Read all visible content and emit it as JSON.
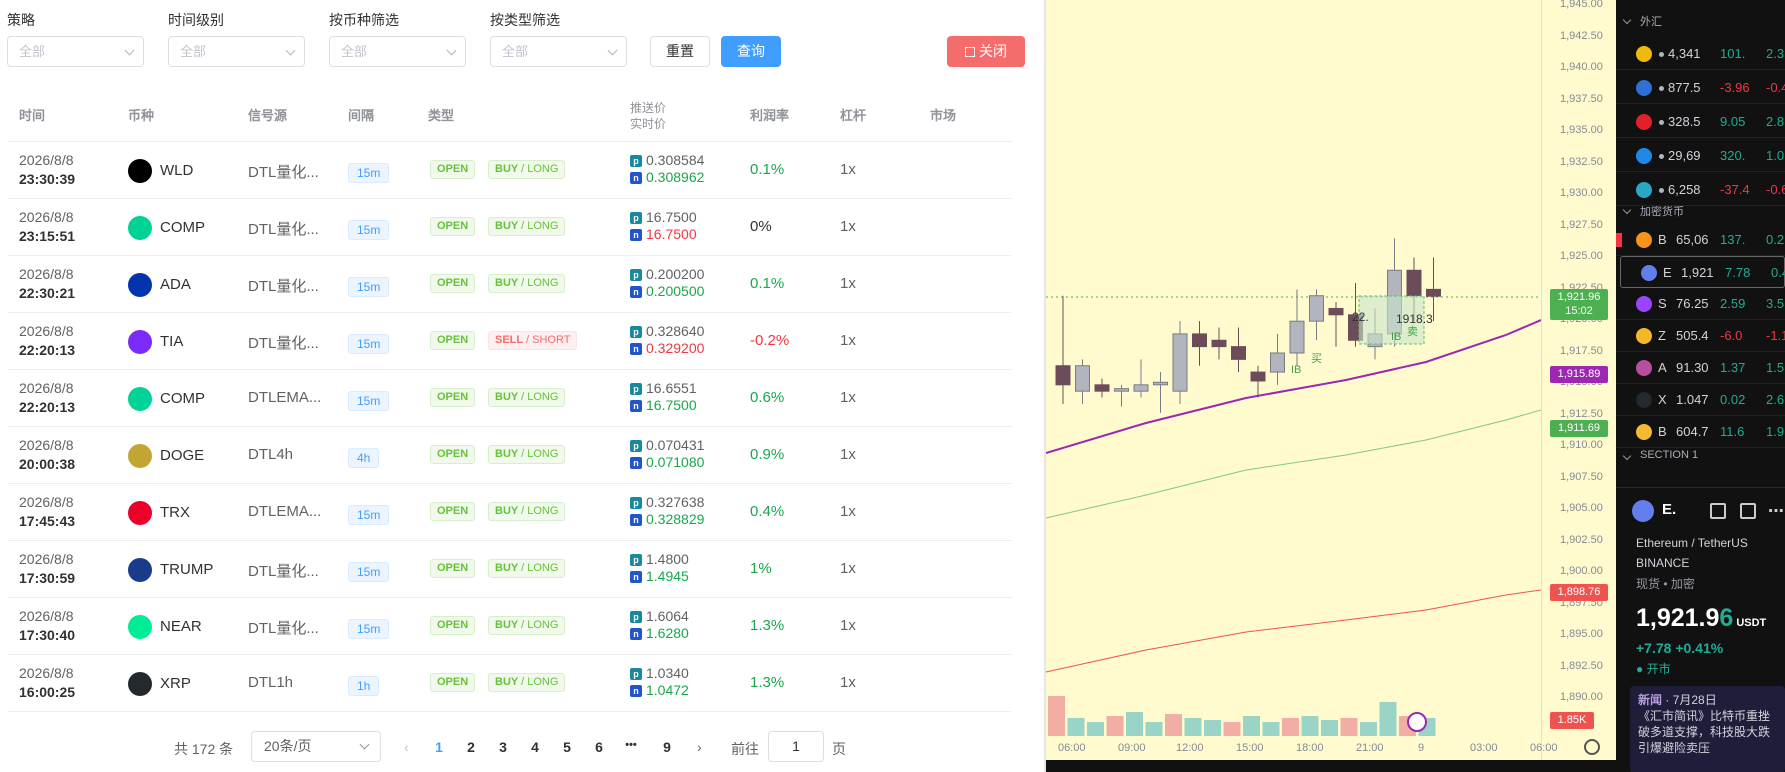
{
  "filters": [
    {
      "label": "策略",
      "value": "全部"
    },
    {
      "label": "时间级别",
      "value": "全部"
    },
    {
      "label": "按币种筛选",
      "value": "全部"
    },
    {
      "label": "按类型筛选",
      "value": "全部"
    }
  ],
  "buttons": {
    "reset": "重置",
    "query": "查询",
    "close": "关闭"
  },
  "table": {
    "headers": {
      "time": "时间",
      "coin": "币种",
      "source": "信号源",
      "interval": "间隔",
      "type": "类型",
      "push_price": "推送价",
      "real_price": "实时价",
      "profit": "利润率",
      "leverage": "杠杆",
      "market": "市场"
    },
    "rows": [
      {
        "date": "2026/8/8",
        "time": "23:30:39",
        "coin": "WLD",
        "icon_color": "#000000",
        "source": "DTL量化...",
        "interval": "15m",
        "status": "OPEN",
        "side": "BUY",
        "dir": "LONG",
        "push": "0.308584",
        "real": "0.308962",
        "real_trend": "up",
        "profit": "0.1%",
        "profit_trend": "up",
        "leverage": "1x"
      },
      {
        "date": "2026/8/8",
        "time": "23:15:51",
        "coin": "COMP",
        "icon_color": "#00d395",
        "source": "DTL量化...",
        "interval": "15m",
        "status": "OPEN",
        "side": "BUY",
        "dir": "LONG",
        "push": "16.7500",
        "real": "16.7500",
        "real_trend": "down",
        "profit": "0%",
        "profit_trend": "flat",
        "leverage": "1x"
      },
      {
        "date": "2026/8/8",
        "time": "22:30:21",
        "coin": "ADA",
        "icon_color": "#0033ad",
        "source": "DTL量化...",
        "interval": "15m",
        "status": "OPEN",
        "side": "BUY",
        "dir": "LONG",
        "push": "0.200200",
        "real": "0.200500",
        "real_trend": "up",
        "profit": "0.1%",
        "profit_trend": "up",
        "leverage": "1x"
      },
      {
        "date": "2026/8/8",
        "time": "22:20:13",
        "coin": "TIA",
        "icon_color": "#7b2bf9",
        "source": "DTL量化...",
        "interval": "15m",
        "status": "OPEN",
        "side": "SELL",
        "dir": "SHORT",
        "push": "0.328640",
        "real": "0.329200",
        "real_trend": "down",
        "profit": "-0.2%",
        "profit_trend": "down",
        "leverage": "1x"
      },
      {
        "date": "2026/8/8",
        "time": "22:20:13",
        "coin": "COMP",
        "icon_color": "#00d395",
        "source": "DTLEMA...",
        "interval": "15m",
        "status": "OPEN",
        "side": "BUY",
        "dir": "LONG",
        "push": "16.6551",
        "real": "16.7500",
        "real_trend": "up",
        "profit": "0.6%",
        "profit_trend": "up",
        "leverage": "1x"
      },
      {
        "date": "2026/8/8",
        "time": "20:00:38",
        "coin": "DOGE",
        "icon_color": "#c2a633",
        "source": "DTL4h",
        "interval": "4h",
        "status": "OPEN",
        "side": "BUY",
        "dir": "LONG",
        "push": "0.070431",
        "real": "0.071080",
        "real_trend": "up",
        "profit": "0.9%",
        "profit_trend": "up",
        "leverage": "1x"
      },
      {
        "date": "2026/8/8",
        "time": "17:45:43",
        "coin": "TRX",
        "icon_color": "#eb0029",
        "source": "DTLEMA...",
        "interval": "15m",
        "status": "OPEN",
        "side": "BUY",
        "dir": "LONG",
        "push": "0.327638",
        "real": "0.328829",
        "real_trend": "up",
        "profit": "0.4%",
        "profit_trend": "up",
        "leverage": "1x"
      },
      {
        "date": "2026/8/8",
        "time": "17:30:59",
        "coin": "TRUMP",
        "icon_color": "#1a3a8a",
        "source": "DTL量化...",
        "interval": "15m",
        "status": "OPEN",
        "side": "BUY",
        "dir": "LONG",
        "push": "1.4800",
        "real": "1.4945",
        "real_trend": "up",
        "profit": "1%",
        "profit_trend": "up",
        "leverage": "1x"
      },
      {
        "date": "2026/8/8",
        "time": "17:30:40",
        "coin": "NEAR",
        "icon_color": "#00ec97",
        "source": "DTL量化...",
        "interval": "15m",
        "status": "OPEN",
        "side": "BUY",
        "dir": "LONG",
        "push": "1.6064",
        "real": "1.6280",
        "real_trend": "up",
        "profit": "1.3%",
        "profit_trend": "up",
        "leverage": "1x"
      },
      {
        "date": "2026/8/8",
        "time": "16:00:25",
        "coin": "XRP",
        "icon_color": "#23292f",
        "source": "DTL1h",
        "interval": "1h",
        "status": "OPEN",
        "side": "BUY",
        "dir": "LONG",
        "push": "1.0340",
        "real": "1.0472",
        "real_trend": "up",
        "profit": "1.3%",
        "profit_trend": "up",
        "leverage": "1x"
      }
    ]
  },
  "pagination": {
    "total": "共 172 条",
    "page_size": "20条/页",
    "pages": [
      "1",
      "2",
      "3",
      "4",
      "5",
      "6",
      "•••",
      "9"
    ],
    "current": "1",
    "goto_label": "前往",
    "goto_value": "1",
    "goto_unit": "页"
  },
  "price_chart": {
    "price_ticks": [
      "1,945.00",
      "1,942.50",
      "1,940.00",
      "1,937.50",
      "1,935.00",
      "1,932.50",
      "1,930.00",
      "1,927.50",
      "1,925.00",
      "1,922.50",
      "1,920.00",
      "1,917.50",
      "1,915.00",
      "1,912.50",
      "1,910.00",
      "1,907.50",
      "1,905.00",
      "1,902.50",
      "1,900.00",
      "1,897.50",
      "1,895.00",
      "1,892.50",
      "1,890.00"
    ],
    "time_ticks": [
      "06:00",
      "09:00",
      "12:00",
      "15:00",
      "18:00",
      "21:00",
      "9",
      "03:00",
      "06:00"
    ],
    "last_price": "1,921.96",
    "countdown": "15:02",
    "ma_purple": "1,915.89",
    "ma_green": "1,911.69",
    "ma_red": "1,898.76",
    "volume": "1.85K",
    "annotation": "1918.3",
    "annotation_left": "22.",
    "markers": [
      "IB",
      "买",
      "IB",
      "卖"
    ],
    "colors": {
      "bg": "#fffbcf",
      "up": "#b2b5be",
      "down": "#6d4c5a",
      "purple": "#9c27b0",
      "green": "#81c784",
      "red": "#ef5350"
    }
  },
  "watchlist": {
    "sections": [
      "外汇",
      "加密货币",
      "SECTION 1"
    ],
    "forex": [
      {
        "name": "4,341",
        "chg": "101.",
        "pct": "2.3",
        "trend": "up",
        "color": "#f0b90b"
      },
      {
        "name": "877.5",
        "chg": "-3.96",
        "pct": "-0.4",
        "trend": "down",
        "color": "#2f6fd6"
      },
      {
        "name": "328.5",
        "chg": "9.05",
        "pct": "2.8",
        "trend": "up",
        "color": "#e0202a"
      },
      {
        "name": "29,69",
        "chg": "320.",
        "pct": "1.0",
        "trend": "up",
        "color": "#1e88e5"
      },
      {
        "name": "6,258",
        "chg": "-37.4",
        "pct": "-0.6",
        "trend": "down",
        "color": "#2aa7c4"
      }
    ],
    "crypto": [
      {
        "name": "B",
        "sub": "65,06",
        "chg": "137.",
        "pct": "0.2",
        "trend": "up",
        "color": "#f7931a"
      },
      {
        "name": "E",
        "sub": "1,921",
        "chg": "7.78",
        "pct": "0.4",
        "trend": "up",
        "color": "#627eea"
      },
      {
        "name": "S",
        "sub": "76.25",
        "chg": "2.59",
        "pct": "3.5",
        "trend": "up",
        "color": "#9945ff"
      },
      {
        "name": "Z",
        "sub": "505.4",
        "chg": "-6.0",
        "pct": "-1.1",
        "trend": "down",
        "color": "#f4b728"
      },
      {
        "name": "A",
        "sub": "91.30",
        "chg": "1.37",
        "pct": "1.5",
        "trend": "up",
        "color": "#b6509e"
      },
      {
        "name": "X",
        "sub": "1.047",
        "chg": "0.02",
        "pct": "2.6",
        "trend": "up",
        "color": "#23292f"
      },
      {
        "name": "B",
        "sub": "604.7",
        "chg": "11.6",
        "pct": "1.9",
        "trend": "up",
        "color": "#f3ba2f"
      }
    ]
  },
  "symbol_detail": {
    "ticker": "E.",
    "pair": "Ethereum / TetherUS",
    "exchange": "BINANCE",
    "category": "现货 • 加密",
    "price_main": "1,921.9",
    "price_last": "6",
    "currency": "USDT",
    "change": "+7.78",
    "change_pct": "+0.41%",
    "market_status": "开市",
    "news_label": "新闻",
    "news_date": "7月28日",
    "news_text": "《汇市简讯》比特币重挫破多道支撑，科技股大跌引爆避险卖压"
  }
}
